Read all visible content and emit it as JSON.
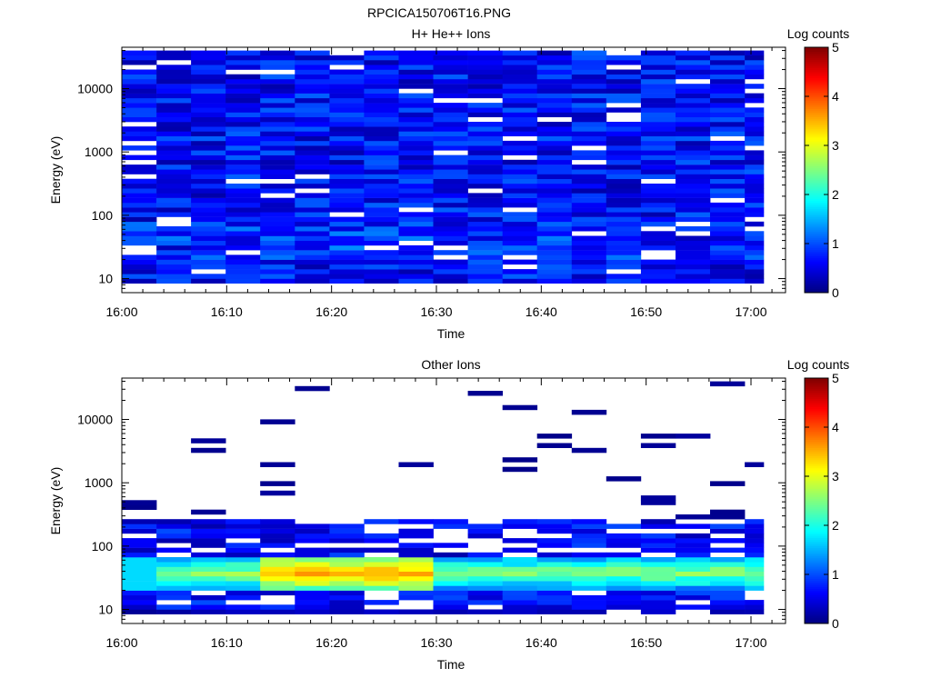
{
  "figure_title": "RPCICA150706T16.PNG",
  "chart_data": [
    {
      "type": "heatmap",
      "title": "H+ He++ Ions",
      "xlabel": "Time",
      "ylabel": "Energy (eV)",
      "x_ticks": [
        "16:00",
        "16:10",
        "16:20",
        "16:30",
        "16:40",
        "16:50",
        "17:00"
      ],
      "x_range": [
        "16:00",
        "17:03"
      ],
      "y_scale": "log",
      "y_ticks": [
        "10",
        "100",
        "1000",
        "10000"
      ],
      "y_range": [
        6,
        45000
      ],
      "colorbar": {
        "label": "Log counts",
        "range": [
          0,
          5
        ],
        "ticks": [
          "0",
          "1",
          "2",
          "3",
          "4",
          "5"
        ],
        "colormap": "jet"
      },
      "time_bins": 19,
      "time_bin_minutes": 3.3,
      "energy_bins": 48,
      "notes": "Broad blue (log counts ~0.3-1.2) at all energies 10 eV-40 keV, enhanced ~1.5-2 around 40-60 eV near 16:13-16:20; scattered empty (white) bins."
    },
    {
      "type": "heatmap",
      "title": "Other Ions",
      "xlabel": "Time",
      "ylabel": "Energy (eV)",
      "x_ticks": [
        "16:00",
        "16:10",
        "16:20",
        "16:30",
        "16:40",
        "16:50",
        "17:00"
      ],
      "x_range": [
        "16:00",
        "17:03"
      ],
      "y_scale": "log",
      "y_ticks": [
        "10",
        "100",
        "1000",
        "10000"
      ],
      "y_range": [
        6,
        45000
      ],
      "colorbar": {
        "label": "Log counts",
        "range": [
          0,
          5
        ],
        "ticks": [
          "0",
          "1",
          "2",
          "3",
          "4",
          "5"
        ],
        "colormap": "jet"
      },
      "time_bins": 19,
      "time_bin_minutes": 3.3,
      "energy_bins": 48,
      "notes": "Intense band 25-60 eV with peak log counts ~4 near 16:10-16:25, ~2.5-3 afterwards; sparse low counts above 200 eV."
    }
  ]
}
